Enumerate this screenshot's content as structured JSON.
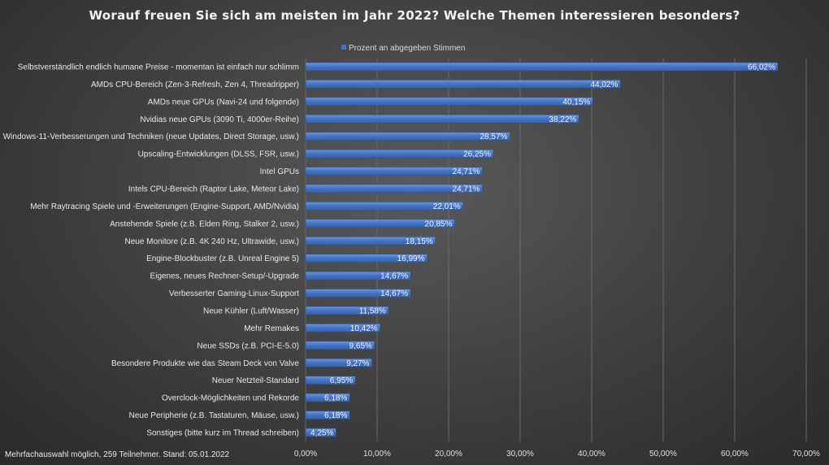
{
  "chart_data": {
    "type": "bar",
    "orientation": "horizontal",
    "title": "Worauf freuen Sie sich am meisten im Jahr 2022? Welche Themen interessieren besonders?",
    "legend": {
      "position": "top",
      "entries": [
        "Prozent an abgegeben Stimmen"
      ]
    },
    "series_color": "#4472C4",
    "footnote": "Mehrfachauswahl möglich, 259 Teilnehmer.  Stand: 05.01.2022",
    "xlim": [
      0,
      70
    ],
    "x_ticks": [
      0,
      10,
      20,
      30,
      40,
      50,
      60,
      70
    ],
    "x_tick_labels": [
      "0,00%",
      "10,00%",
      "20,00%",
      "30,00%",
      "40,00%",
      "50,00%",
      "60,00%",
      "70,00%"
    ],
    "grid": true,
    "categories": [
      "Selbstverständlich endlich humane Preise - momentan ist einfach nur schlimm",
      "AMDs CPU-Bereich (Zen-3-Refresh, Zen 4, Threadripper)",
      "AMDs neue GPUs (Navi-24 und folgende)",
      "Nvidias neue GPUs (3090 Ti, 4000er-Reihe)",
      "Windows-11-Verbesserungen und Techniken (neue Updates, Direct Storage, usw.)",
      "Upscaling-Entwicklungen (DLSS, FSR, usw.)",
      "Intel GPUs",
      "Intels CPU-Bereich (Raptor Lake, Meteor Lake)",
      "Mehr Raytracing Spiele und -Erweiterungen (Engine-Support, AMD/Nvidia)",
      "Anstehende Spiele (z.B. Elden Ring, Stalker 2, usw.)",
      "Neue Monitore (z.B. 4K 240 Hz, Ultrawide, usw.)",
      "Engine-Blockbuster (z.B. Unreal Engine 5)",
      "Eigenes, neues Rechner-Setup/-Upgrade",
      "Verbesserter Gaming-Linux-Support",
      "Neue Kühler (Luft/Wasser)",
      "Mehr Remakes",
      "Neue SSDs (z.B. PCI-E-5.0)",
      "Besondere Produkte wie das Steam Deck von Valve",
      "Neuer Netzteil-Standard",
      "Overclock-Möglichkeiten und Rekorde",
      "Neue Peripherie (z.B. Tastaturen, Mäuse, usw.)",
      "Sonstiges (bitte kurz im Thread schreiben)"
    ],
    "values": [
      66.02,
      44.02,
      40.15,
      38.22,
      28.57,
      26.25,
      24.71,
      24.71,
      22.01,
      20.85,
      18.15,
      16.99,
      14.67,
      14.67,
      11.58,
      10.42,
      9.65,
      9.27,
      6.95,
      6.18,
      6.18,
      4.25
    ],
    "value_labels": [
      "66,02%",
      "44,02%",
      "40,15%",
      "38,22%",
      "28,57%",
      "26,25%",
      "24,71%",
      "24,71%",
      "22,01%",
      "20,85%",
      "18,15%",
      "16,99%",
      "14,67%",
      "14,67%",
      "11,58%",
      "10,42%",
      "9,65%",
      "9,27%",
      "6,95%",
      "6,18%",
      "6,18%",
      "4,25%"
    ]
  }
}
